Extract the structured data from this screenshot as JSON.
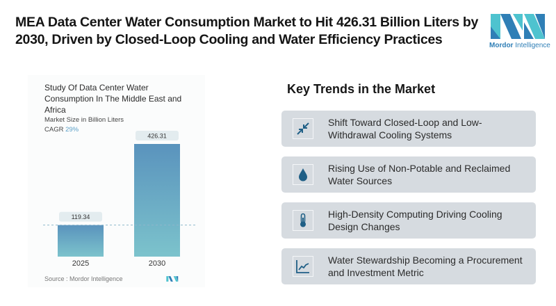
{
  "headline": "MEA Data Center Water Consumption Market to Hit 426.31 Billion Liters by 2030, Driven by Closed-Loop Cooling and Water Efficiency Practices",
  "logo": {
    "brand_bold": "Mordor",
    "brand_rest": " Intelligence",
    "icon": "mordor-intelligence-logo"
  },
  "chart_data": {
    "type": "bar",
    "title": "Study Of Data Center Water Consumption In The Middle East and Africa",
    "subtitle": "Market Size in Billion Liters",
    "cagr_label": "CAGR",
    "cagr_value": "29%",
    "categories": [
      "2025",
      "2030"
    ],
    "values": [
      119.34,
      426.31
    ],
    "value_labels": [
      "119.34",
      "426.31"
    ],
    "xlabel": "",
    "ylabel": "Market Size (Billion Liters)",
    "ylim": [
      0,
      426.31
    ],
    "grid": false,
    "reference_line": "dashed line at 2025 value",
    "source": "Source :  Mordor Intelligence"
  },
  "trends": {
    "title": "Key Trends in the Market",
    "items": [
      {
        "label": "Shift Toward Closed-Loop and Low-Withdrawal Cooling Systems",
        "icon": "arrows-inward-icon"
      },
      {
        "label": "Rising Use of Non-Potable and Reclaimed Water Sources",
        "icon": "water-drop-icon"
      },
      {
        "label": "High-Density Computing Driving Cooling Design Changes",
        "icon": "thermometer-icon"
      },
      {
        "label": "Water Stewardship Becoming a Procurement and Investment Metric",
        "icon": "line-chart-icon"
      }
    ]
  },
  "colors": {
    "accent": "#2f7fb6",
    "teal": "#4ec3cf",
    "bar_top": "#5a93bd",
    "bar_bottom": "#7cc3cc",
    "icon": "#1f5f86",
    "card_bg": "#d6dbe0"
  }
}
